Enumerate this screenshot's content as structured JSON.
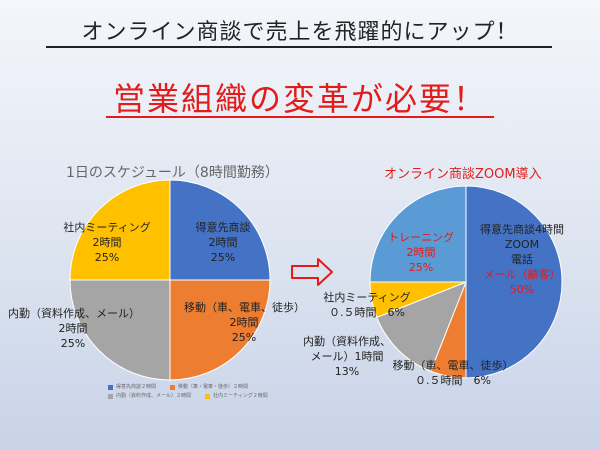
{
  "header": {
    "title": "オンライン商談で売上を飛躍的にアップ！",
    "subtitle": "営業組織の変革が必要！"
  },
  "colors": {
    "blue": "#4472c4",
    "orange": "#ed7d31",
    "gray": "#a5a5a5",
    "yellow": "#ffc000",
    "arrow": "#e21b1b"
  },
  "arrow_icon": "right-arrow-icon",
  "chart_data": [
    {
      "type": "pie",
      "title": "1日のスケジュール（8時間勤務）",
      "slices": [
        {
          "name": "得意先商談2時間",
          "label_lines": [
            "得意先商談",
            "2時間",
            "25%"
          ],
          "value": 25,
          "color": "#4472c4"
        },
        {
          "name": "移動（車、電車、徒歩）2時間",
          "label_lines": [
            "移動（車、電車、徒歩）",
            "2時間",
            "25%"
          ],
          "value": 25,
          "color": "#ed7d31"
        },
        {
          "name": "内勤（資料作成、メール）2時間",
          "label_lines": [
            "内勤（資料作成、メール）",
            "2時間",
            "25%"
          ],
          "value": 25,
          "color": "#a5a5a5"
        },
        {
          "name": "社内ミーティング2時間",
          "label_lines": [
            "社内ミーティング",
            "2時間",
            "25%"
          ],
          "value": 25,
          "color": "#ffc000"
        }
      ],
      "legend": [
        "得意先商談２時間",
        "移動（車・電車・徒歩）２時間",
        "内勤（資料作成、メール）２時間",
        "社内ミーティング２時間"
      ],
      "legend_placement": "bottom"
    },
    {
      "type": "pie",
      "title": "オンライン商談ZOOM導入",
      "slices": [
        {
          "name": "得意先商談4時間",
          "label_lines": [
            "得意先商談4時間",
            "ZOOM",
            "電話",
            "メール（顧客）",
            "50%"
          ],
          "value": 50,
          "color": "#4472c4"
        },
        {
          "name": "移動",
          "label_lines": [
            "移動（車、電車、徒歩）",
            "０.５時間　6%"
          ],
          "value": 6,
          "color": "#ed7d31"
        },
        {
          "name": "内勤",
          "label_lines": [
            "内勤（資料作成、",
            "メール）1時間",
            "13%"
          ],
          "value": 13,
          "color": "#a5a5a5"
        },
        {
          "name": "社内ミーティング",
          "label_lines": [
            "社内ミーティング",
            "０.５時間　6%"
          ],
          "value": 6,
          "color": "#ffc000"
        },
        {
          "name": "トレーニング",
          "label_lines": [
            "トレーニング",
            "2時間",
            "25%"
          ],
          "value": 25,
          "color": "#5b9bd5"
        }
      ]
    }
  ]
}
